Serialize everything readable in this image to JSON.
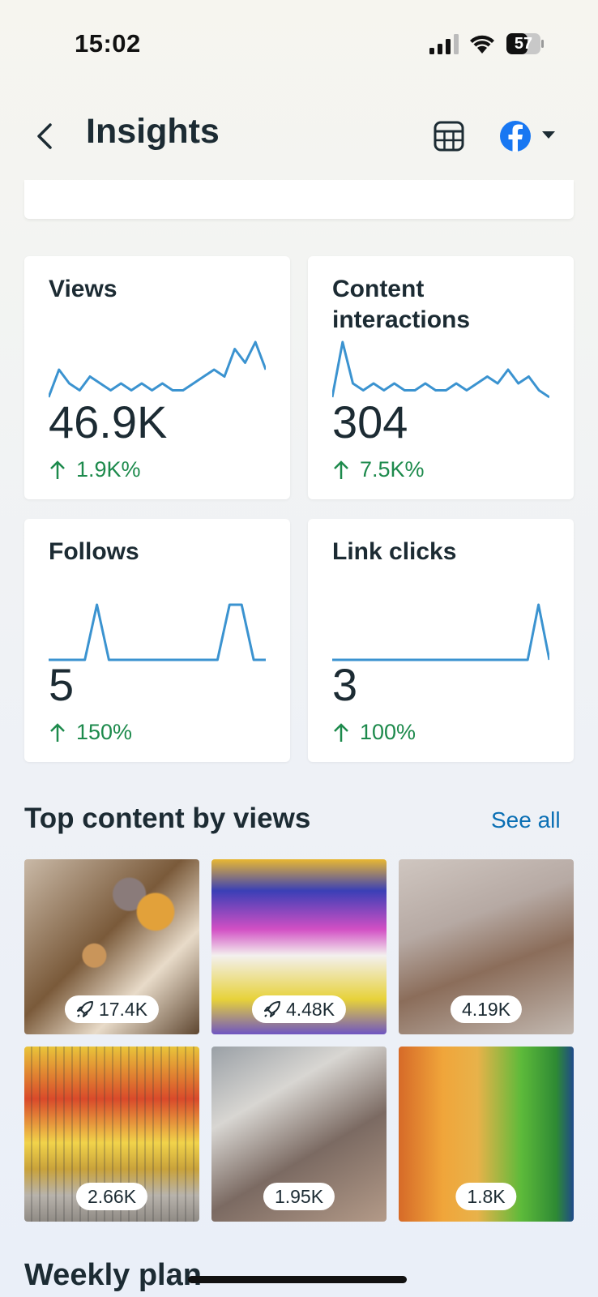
{
  "status_bar": {
    "time": "15:02",
    "battery": "57"
  },
  "header": {
    "title": "Insights"
  },
  "metrics": [
    {
      "label": "Views",
      "value": "46.9K",
      "change": "1.9K%",
      "sparkline": [
        1,
        5,
        3,
        2,
        4,
        3,
        2,
        3,
        2,
        3,
        2,
        3,
        2,
        2,
        3,
        4,
        5,
        4,
        8,
        6,
        9,
        5
      ]
    },
    {
      "label": "Content interactions",
      "value": "304",
      "change": "7.5K%",
      "sparkline": [
        1,
        9,
        3,
        2,
        3,
        2,
        3,
        2,
        2,
        3,
        2,
        2,
        3,
        2,
        3,
        4,
        3,
        5,
        3,
        4,
        2,
        1
      ]
    },
    {
      "label": "Follows",
      "value": "5",
      "change": "150%",
      "sparkline": [
        0,
        0,
        0,
        0,
        1,
        0,
        0,
        0,
        0,
        0,
        0,
        0,
        0,
        0,
        0,
        1,
        1,
        0,
        0
      ]
    },
    {
      "label": "Link clicks",
      "value": "3",
      "change": "100%",
      "sparkline": [
        0,
        0,
        0,
        0,
        0,
        0,
        0,
        0,
        0,
        0,
        0,
        0,
        0,
        0,
        0,
        0,
        0,
        0,
        0,
        1,
        0
      ]
    }
  ],
  "top_content": {
    "title": "Top content by views",
    "see_all": "See all",
    "items": [
      {
        "views": "17.4K",
        "boosted": true
      },
      {
        "views": "4.48K",
        "boosted": true
      },
      {
        "views": "4.19K",
        "boosted": false
      },
      {
        "views": "2.66K",
        "boosted": false
      },
      {
        "views": "1.95K",
        "boosted": false
      },
      {
        "views": "1.8K",
        "boosted": false
      }
    ]
  },
  "weekly_plan": {
    "title": "Weekly plan"
  },
  "colors": {
    "accent": "#1877f2",
    "positive": "#1d8a4c",
    "link": "#0a6fb4",
    "chart_line": "#3b93d0"
  }
}
